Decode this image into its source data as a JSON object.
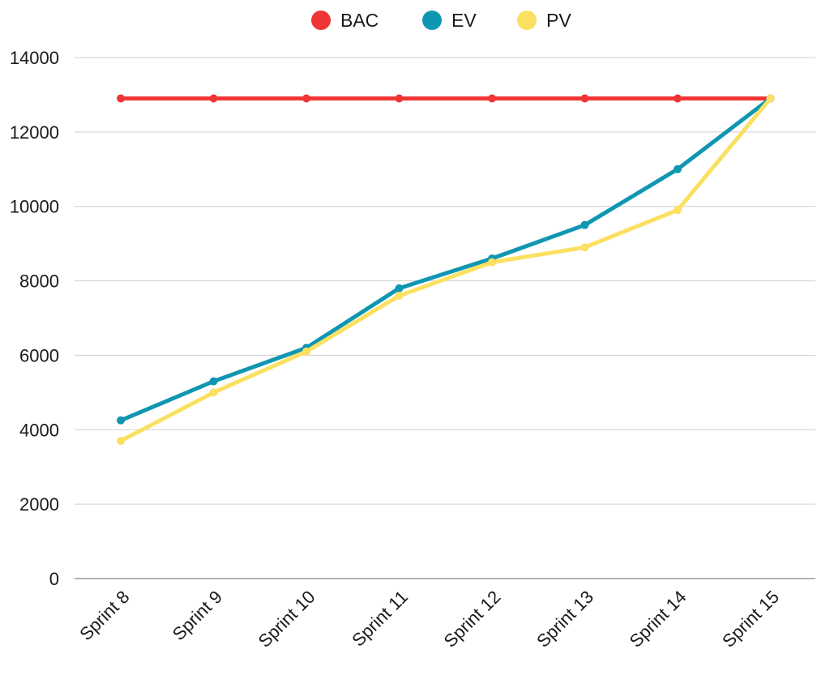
{
  "chart_data": {
    "type": "line",
    "title": "",
    "xlabel": "",
    "ylabel": "",
    "categories": [
      "Sprint 8",
      "Sprint 9",
      "Sprint 10",
      "Sprint 11",
      "Sprint 12",
      "Sprint 13",
      "Sprint 14",
      "Sprint 15"
    ],
    "ylim": [
      0,
      14000
    ],
    "yticks": [
      "0",
      "2000",
      "4000",
      "6000",
      "8000",
      "10000",
      "12000",
      "14000"
    ],
    "grid": true,
    "legend_position": "top-center",
    "series": [
      {
        "name": "BAC",
        "color": "#f03535",
        "values": [
          12900,
          12900,
          12900,
          12900,
          12900,
          12900,
          12900,
          12900
        ]
      },
      {
        "name": "EV",
        "color": "#0f96b1",
        "values": [
          4250,
          5300,
          6200,
          7800,
          8600,
          9500,
          11000,
          12900
        ]
      },
      {
        "name": "PV",
        "color": "#fbe061",
        "values": [
          3700,
          5000,
          6100,
          7600,
          8500,
          8900,
          9900,
          12900
        ]
      }
    ]
  }
}
